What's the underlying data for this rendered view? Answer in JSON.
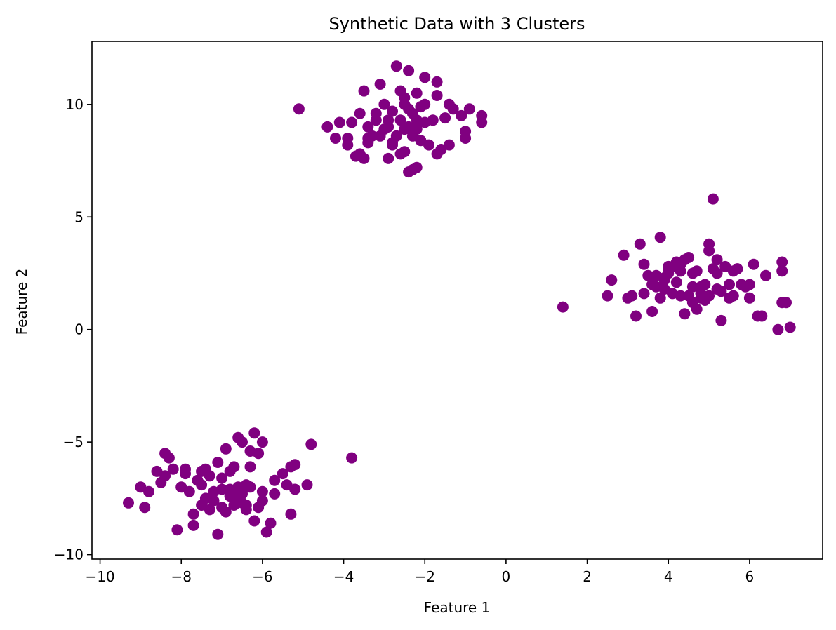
{
  "chart_data": {
    "type": "scatter",
    "title": "Synthetic Data with 3 Clusters",
    "xlabel": "Feature 1",
    "ylabel": "Feature 2",
    "xlim": [
      -10.2,
      7.8
    ],
    "ylim": [
      -10.2,
      12.8
    ],
    "xticks": [
      -10,
      -8,
      -6,
      -4,
      -2,
      0,
      2,
      4,
      6
    ],
    "yticks": [
      -10,
      -5,
      0,
      5,
      10
    ],
    "xtick_labels": [
      "−10",
      "−8",
      "−6",
      "−4",
      "−2",
      "0",
      "2",
      "4",
      "6"
    ],
    "ytick_labels": [
      "−10",
      "−5",
      "0",
      "5",
      "10"
    ],
    "grid": false,
    "color": "#800080",
    "series": [
      {
        "x": [
          -5.1,
          -4.4,
          -4.2,
          -4.1,
          -3.9,
          -3.9,
          -3.8,
          -3.7,
          -3.6,
          -3.5,
          -3.5,
          -3.4,
          -3.4,
          -3.3,
          -3.2,
          -3.1,
          -3.1,
          -3.0,
          -3.0,
          -2.9,
          -2.9,
          -2.8,
          -2.8,
          -2.7,
          -2.7,
          -2.6,
          -2.6,
          -2.5,
          -2.5,
          -2.5,
          -2.4,
          -2.4,
          -2.4,
          -2.3,
          -2.3,
          -2.3,
          -2.2,
          -2.2,
          -2.2,
          -2.1,
          -2.1,
          -2.0,
          -2.0,
          -1.9,
          -1.8,
          -1.7,
          -1.7,
          -1.6,
          -1.5,
          -1.4,
          -1.4,
          -1.3,
          -1.1,
          -1.0,
          -1.0,
          -0.9,
          -0.6,
          -0.6,
          -2.8,
          -2.4,
          -2.2,
          -3.6,
          -3.4,
          -1.7,
          -2.6,
          -2.9,
          -3.2,
          -2.0,
          -2.5
        ],
        "y": [
          9.8,
          9.0,
          8.5,
          9.2,
          8.2,
          8.5,
          9.2,
          7.7,
          9.6,
          7.6,
          10.6,
          8.3,
          9.0,
          8.6,
          9.6,
          8.6,
          10.9,
          8.9,
          10.0,
          9.3,
          7.6,
          9.7,
          8.3,
          11.7,
          8.6,
          9.3,
          10.6,
          7.9,
          10.0,
          8.9,
          7.0,
          9.0,
          11.5,
          7.1,
          9.6,
          8.6,
          9.3,
          10.5,
          7.2,
          8.4,
          9.9,
          9.2,
          11.2,
          8.2,
          9.3,
          10.4,
          11.0,
          8.0,
          9.4,
          8.2,
          10.0,
          9.8,
          9.5,
          8.5,
          8.8,
          9.8,
          9.2,
          9.5,
          8.2,
          9.8,
          8.9,
          7.8,
          8.5,
          7.8,
          7.8,
          9.0,
          9.3,
          10.0,
          10.3
        ]
      },
      {
        "x": [
          1.4,
          2.5,
          2.6,
          2.9,
          3.0,
          3.1,
          3.2,
          3.3,
          3.4,
          3.4,
          3.5,
          3.6,
          3.6,
          3.7,
          3.7,
          3.8,
          3.8,
          3.9,
          3.9,
          4.0,
          4.0,
          4.1,
          4.1,
          4.2,
          4.2,
          4.3,
          4.3,
          4.4,
          4.4,
          4.5,
          4.5,
          4.6,
          4.6,
          4.7,
          4.7,
          4.8,
          4.8,
          4.9,
          4.9,
          5.0,
          5.0,
          5.1,
          5.1,
          5.2,
          5.2,
          5.3,
          5.3,
          5.4,
          5.5,
          5.5,
          5.6,
          5.7,
          5.8,
          5.9,
          6.0,
          6.0,
          6.1,
          6.2,
          6.3,
          6.4,
          6.7,
          6.8,
          6.8,
          6.9,
          7.0,
          5.0,
          5.2,
          4.3,
          4.6,
          3.9,
          4.8,
          5.6,
          6.8,
          4.0
        ],
        "y": [
          1.0,
          1.5,
          2.2,
          3.3,
          1.4,
          1.5,
          0.6,
          3.8,
          2.9,
          1.6,
          2.4,
          0.8,
          2.0,
          2.4,
          1.9,
          4.1,
          1.4,
          2.2,
          1.8,
          2.5,
          2.8,
          1.6,
          2.8,
          2.1,
          3.0,
          1.5,
          2.9,
          0.7,
          3.1,
          1.5,
          3.2,
          1.2,
          2.5,
          0.9,
          2.6,
          1.9,
          1.4,
          2.0,
          1.3,
          3.8,
          1.5,
          2.7,
          5.8,
          2.5,
          3.1,
          1.7,
          0.4,
          2.8,
          2.0,
          1.4,
          2.6,
          2.7,
          2.0,
          1.9,
          2.0,
          1.4,
          2.9,
          0.6,
          0.6,
          2.4,
          0.0,
          1.2,
          2.6,
          1.2,
          0.1,
          3.5,
          1.8,
          2.6,
          1.9,
          2.3,
          1.6,
          1.5,
          3.0,
          2.7
        ]
      },
      {
        "x": [
          -9.3,
          -9.0,
          -8.9,
          -8.8,
          -8.6,
          -8.5,
          -8.4,
          -8.4,
          -8.3,
          -8.2,
          -8.1,
          -8.0,
          -7.9,
          -7.9,
          -7.8,
          -7.7,
          -7.7,
          -7.6,
          -7.5,
          -7.5,
          -7.4,
          -7.4,
          -7.3,
          -7.3,
          -7.2,
          -7.1,
          -7.1,
          -7.0,
          -7.0,
          -6.9,
          -6.9,
          -6.8,
          -6.8,
          -6.7,
          -6.7,
          -6.6,
          -6.6,
          -6.5,
          -6.5,
          -6.4,
          -6.4,
          -6.3,
          -6.3,
          -6.2,
          -6.2,
          -6.1,
          -6.1,
          -6.0,
          -6.0,
          -5.9,
          -5.8,
          -5.7,
          -5.7,
          -5.5,
          -5.4,
          -5.3,
          -5.3,
          -5.2,
          -5.2,
          -4.9,
          -4.8,
          -3.8,
          -6.5,
          -6.8,
          -7.5,
          -6.3,
          -6.0,
          -7.0,
          -6.6,
          -7.2,
          -6.4
        ],
        "y": [
          -7.7,
          -7.0,
          -7.9,
          -7.2,
          -6.3,
          -6.8,
          -5.5,
          -6.5,
          -5.7,
          -6.2,
          -8.9,
          -7.0,
          -6.4,
          -6.2,
          -7.2,
          -8.2,
          -8.7,
          -6.7,
          -6.3,
          -7.8,
          -6.2,
          -7.5,
          -8.0,
          -6.5,
          -7.6,
          -5.9,
          -9.1,
          -7.9,
          -7.1,
          -5.3,
          -8.1,
          -6.3,
          -7.4,
          -6.1,
          -7.8,
          -4.8,
          -7.0,
          -5.0,
          -7.7,
          -6.9,
          -7.8,
          -5.4,
          -6.1,
          -4.6,
          -8.5,
          -5.5,
          -7.9,
          -5.0,
          -7.2,
          -9.0,
          -8.6,
          -6.7,
          -7.3,
          -6.4,
          -6.9,
          -6.1,
          -8.2,
          -7.1,
          -6.0,
          -6.9,
          -5.1,
          -5.7,
          -7.3,
          -7.1,
          -6.9,
          -7.0,
          -7.6,
          -6.6,
          -7.4,
          -7.2,
          -8.0
        ]
      }
    ]
  }
}
